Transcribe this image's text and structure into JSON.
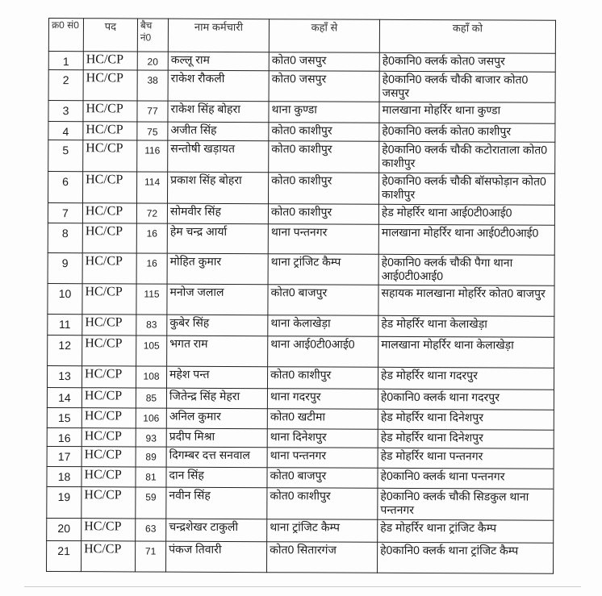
{
  "table": {
    "headers": [
      "क्र0 सं0",
      "पद",
      "बैच नं0",
      "नाम कर्मचारी",
      "कहाँ से",
      "कहाँ को"
    ],
    "rows": [
      [
        "1",
        "HC/CP",
        "20",
        "कल्लू राम",
        "कोत0 जसपुर",
        "हे0कानि0 क्लर्क कोत0 जसपुर"
      ],
      [
        "2",
        "HC/CP",
        "38",
        "राकेश रौकली",
        "कोत0 जसपुर",
        "हे0कानि0 क्लर्क चौकी बाजार कोत0 जसपुर"
      ],
      [
        "3",
        "HC/CP",
        "77",
        "राकेश सिंह बोहरा",
        "थाना कुण्डा",
        "मालखाना मोहर्रिर थाना कुण्डा"
      ],
      [
        "4",
        "HC/CP",
        "75",
        "अजीत सिंह",
        "कोत0 काशीपुर",
        "हे0कानि0 क्लर्क कोत0 काशीपुर"
      ],
      [
        "5",
        "HC/CP",
        "116",
        "सन्तोषी खड़ायत",
        "कोत0 काशीपुर",
        "हे0कानि0 क्लर्क चौकी कटोराताला कोत0 काशीपुर"
      ],
      [
        "6",
        "HC/CP",
        "114",
        "प्रकाश सिंह बोहरा",
        "कोत0 काशीपुर",
        "हे0कानि0 क्लर्क चौकी बॉसफोड़ान कोत0 काशीपुर"
      ],
      [
        "7",
        "HC/CP",
        "72",
        "सोमवीर सिंह",
        "कोत0 काशीपुर",
        "हेड मोहर्रिर थाना आई0टी0आई0"
      ],
      [
        "8",
        "HC/CP",
        "16",
        "हेम चन्द्र आर्या",
        "थाना पन्तनगर",
        "मालखाना मोहर्रिर थाना आई0टी0आई0"
      ],
      [
        "9",
        "HC/CP",
        "16",
        "मोहित कुमार",
        "थाना ट्रांजिट कैम्प",
        "हे0कानि0 क्लर्क चौकी पैगा थाना आई0टी0आई0"
      ],
      [
        "10",
        "HC/CP",
        "115",
        "मनोज जलाल",
        "कोत0 बाजपुर",
        "सहायक मालखाना मोहर्रिर कोत0 बाजपुर"
      ],
      [
        "11",
        "HC/CP",
        "83",
        "कुबेर सिंह",
        "थाना केलाखेड़ा",
        "हेड मोहर्रिर थाना केलाखेड़ा"
      ],
      [
        "12",
        "HC/CP",
        "105",
        "भगत राम",
        "थाना आई0टी0आई0",
        "मालखाना मोहर्रिर थाना केलाखेड़ा"
      ],
      [
        "13",
        "HC/CP",
        "108",
        "महेश पन्त",
        "कोत0 काशीपुर",
        "हेड मोहर्रिर थाना गदरपुर"
      ],
      [
        "14",
        "HC/CP",
        "85",
        "जितेन्द्र सिंह मेहरा",
        "थाना गदरपुर",
        "हे0कानि0 क्लर्क थाना गदरपुर"
      ],
      [
        "15",
        "HC/CP",
        "106",
        "अनिल कुमार",
        "कोत0 खटीमा",
        "हेड मोहर्रिर थाना दिनेशपुर"
      ],
      [
        "16",
        "HC/CP",
        "93",
        "प्रदीप मिश्रा",
        "थाना दिनेशपुर",
        "हेड मोहर्रिर थाना दिनेशपुर"
      ],
      [
        "17",
        "HC/CP",
        "89",
        "दिगम्बर दत्त सनवाल",
        "थाना पन्तनगर",
        "हेड मोहर्रिर थाना पन्तनगर"
      ],
      [
        "18",
        "HC/CP",
        "81",
        "दान सिंह",
        "कोत0 बाजपुर",
        "हे0कानि0 क्लर्क थाना पन्तनगर"
      ],
      [
        "19",
        "HC/CP",
        "59",
        "नवीन सिंह",
        "कोत0 काशीपुर",
        "हे0कानि0 क्लर्क चौकी सिडकुल थाना पन्तनगर"
      ],
      [
        "20",
        "HC/CP",
        "63",
        "चन्द्रशेखर टाकुली",
        "थाना ट्रांजिट कैम्प",
        "हेड मोहर्रिर थाना ट्रांजिट कैम्प"
      ],
      [
        "21",
        "HC/CP",
        "71",
        "पंकज तिवारी",
        "कोत0 सितारगंज",
        "हे0कानि0 क्लर्क थाना ट्रांजिट कैम्प"
      ]
    ]
  }
}
